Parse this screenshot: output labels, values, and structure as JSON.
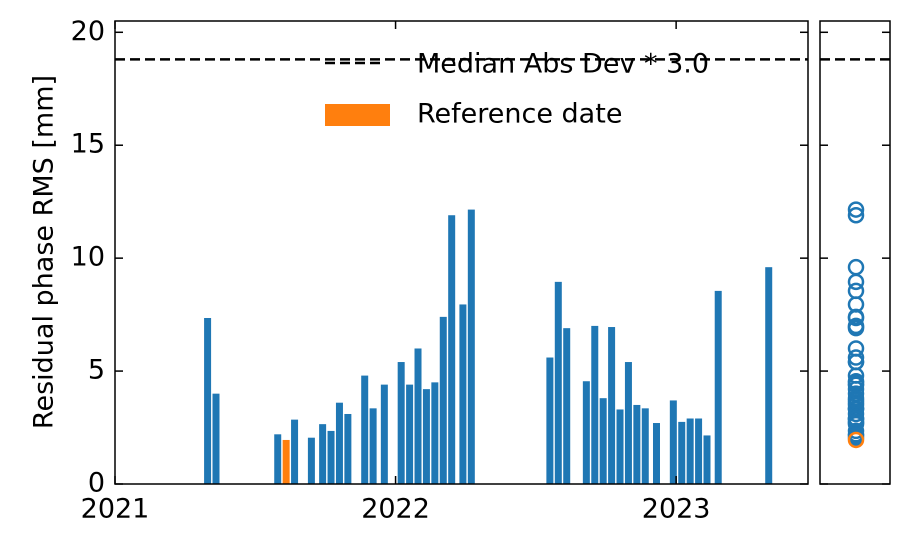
{
  "chart_data": {
    "type": "bar",
    "y_label": "Residual phase RMS [mm]",
    "xlim": [
      2021.0,
      2023.47
    ],
    "xticks": [
      2021,
      2022,
      2023
    ],
    "ylim": [
      0,
      20.5
    ],
    "yticks": [
      0,
      5,
      10,
      15,
      20
    ],
    "bars": {
      "color": "#1f77b4",
      "x": [
        2021.33,
        2021.36,
        2021.58,
        2021.64,
        2021.7,
        2021.74,
        2021.77,
        2021.8,
        2021.83,
        2021.89,
        2021.92,
        2021.96,
        2022.02,
        2022.05,
        2022.08,
        2022.11,
        2022.14,
        2022.17,
        2022.2,
        2022.24,
        2022.27,
        2022.55,
        2022.58,
        2022.61,
        2022.68,
        2022.71,
        2022.74,
        2022.77,
        2022.8,
        2022.83,
        2022.86,
        2022.89,
        2022.93,
        2022.99,
        2023.02,
        2023.05,
        2023.08,
        2023.11,
        2023.15,
        2023.33
      ],
      "values": [
        7.35,
        4.0,
        2.2,
        2.85,
        2.05,
        2.65,
        2.35,
        3.6,
        3.1,
        4.8,
        3.35,
        4.4,
        5.4,
        4.4,
        6.0,
        4.2,
        4.5,
        7.4,
        11.9,
        7.95,
        12.15,
        5.6,
        8.95,
        6.9,
        4.55,
        7.0,
        3.8,
        6.95,
        3.3,
        5.4,
        3.5,
        3.35,
        2.7,
        3.7,
        2.75,
        2.9,
        2.9,
        2.15,
        8.55,
        9.6
      ]
    },
    "reference": {
      "name": "Reference date",
      "color": "#ff7f0e",
      "x": 2021.61,
      "value": 1.95
    },
    "threshold": {
      "name": "Median Abs Dev * 3.0",
      "value": 18.8
    }
  }
}
